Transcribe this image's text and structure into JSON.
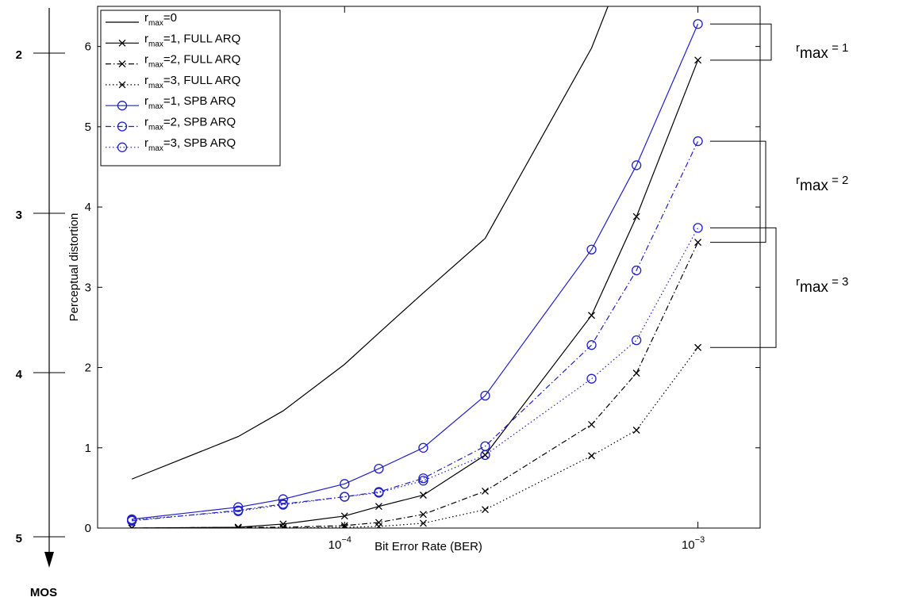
{
  "chart_data": {
    "type": "line",
    "x_label": "Bit Error Rate (BER)",
    "y_label": "Perceptual distortion",
    "x_log": true,
    "xlim": [
      2e-05,
      0.0015
    ],
    "ylim": [
      0,
      6.5
    ],
    "xticks": [
      {
        "value": 0.0001,
        "label": {
          "base": "10",
          "exp": "−4"
        }
      },
      {
        "value": 0.001,
        "label": {
          "base": "10",
          "exp": "−3"
        }
      }
    ],
    "yticks": [
      0,
      1,
      2,
      3,
      4,
      5,
      6
    ],
    "legend": "upper left",
    "x": [
      2.5e-05,
      5e-05,
      6.7e-05,
      0.0001,
      0.000125,
      0.000167,
      0.00025,
      0.0005,
      0.00067,
      0.001
    ],
    "series": [
      {
        "name": {
          "base": "r",
          "sub": "max",
          "rest": "=0"
        },
        "color": "#000000",
        "linestyle": "solid",
        "marker": "none",
        "values": [
          0.61,
          1.14,
          1.46,
          2.04,
          2.43,
          2.93,
          3.61,
          5.98,
          7.4,
          null
        ]
      },
      {
        "name": {
          "base": "r",
          "sub": "max",
          "rest": "=1, FULL ARQ"
        },
        "color": "#000000",
        "linestyle": "solid",
        "marker": "x",
        "values": [
          0,
          0.01,
          0.05,
          0.15,
          0.27,
          0.41,
          0.91,
          2.65,
          3.88,
          5.83
        ]
      },
      {
        "name": {
          "base": "r",
          "sub": "max",
          "rest": "=2, FULL ARQ"
        },
        "color": "#000000",
        "linestyle": "dashdot",
        "marker": "x",
        "values": [
          0,
          0.01,
          0.01,
          0.03,
          0.07,
          0.17,
          0.46,
          1.29,
          1.93,
          3.56
        ]
      },
      {
        "name": {
          "base": "r",
          "sub": "max",
          "rest": "=3, FULL ARQ"
        },
        "color": "#000000",
        "linestyle": "dotted",
        "marker": "x",
        "values": [
          0,
          0,
          0,
          0.01,
          0.02,
          0.06,
          0.23,
          0.9,
          1.22,
          2.25
        ]
      },
      {
        "name": {
          "base": "r",
          "sub": "max",
          "rest": "=1, SPB ARQ"
        },
        "color": "#2020c8",
        "linestyle": "solid",
        "marker": "o",
        "values": [
          0.11,
          0.26,
          0.36,
          0.55,
          0.74,
          1.0,
          1.65,
          3.47,
          4.52,
          6.28
        ]
      },
      {
        "name": {
          "base": "r",
          "sub": "max",
          "rest": "=2, SPB ARQ"
        },
        "color": "#2020c8",
        "linestyle": "dashdot",
        "marker": "o",
        "values": [
          0.09,
          0.22,
          0.3,
          0.39,
          0.45,
          0.62,
          1.02,
          2.28,
          3.21,
          4.82
        ]
      },
      {
        "name": {
          "base": "r",
          "sub": "max",
          "rest": "=3, SPB ARQ"
        },
        "color": "#2020c8",
        "linestyle": "dotted",
        "marker": "o",
        "values": [
          0.1,
          0.21,
          0.29,
          0.39,
          0.44,
          0.59,
          0.91,
          1.86,
          2.34,
          3.74
        ]
      }
    ],
    "mos_label": "MOS",
    "mos_ticks": [
      2,
      3,
      4,
      5
    ],
    "annotations": [
      {
        "base": "r",
        "sub": "max",
        "rest": " = 1"
      },
      {
        "base": "r",
        "sub": "max",
        "rest": " = 2"
      },
      {
        "base": "r",
        "sub": "max",
        "rest": " = 3"
      }
    ]
  }
}
